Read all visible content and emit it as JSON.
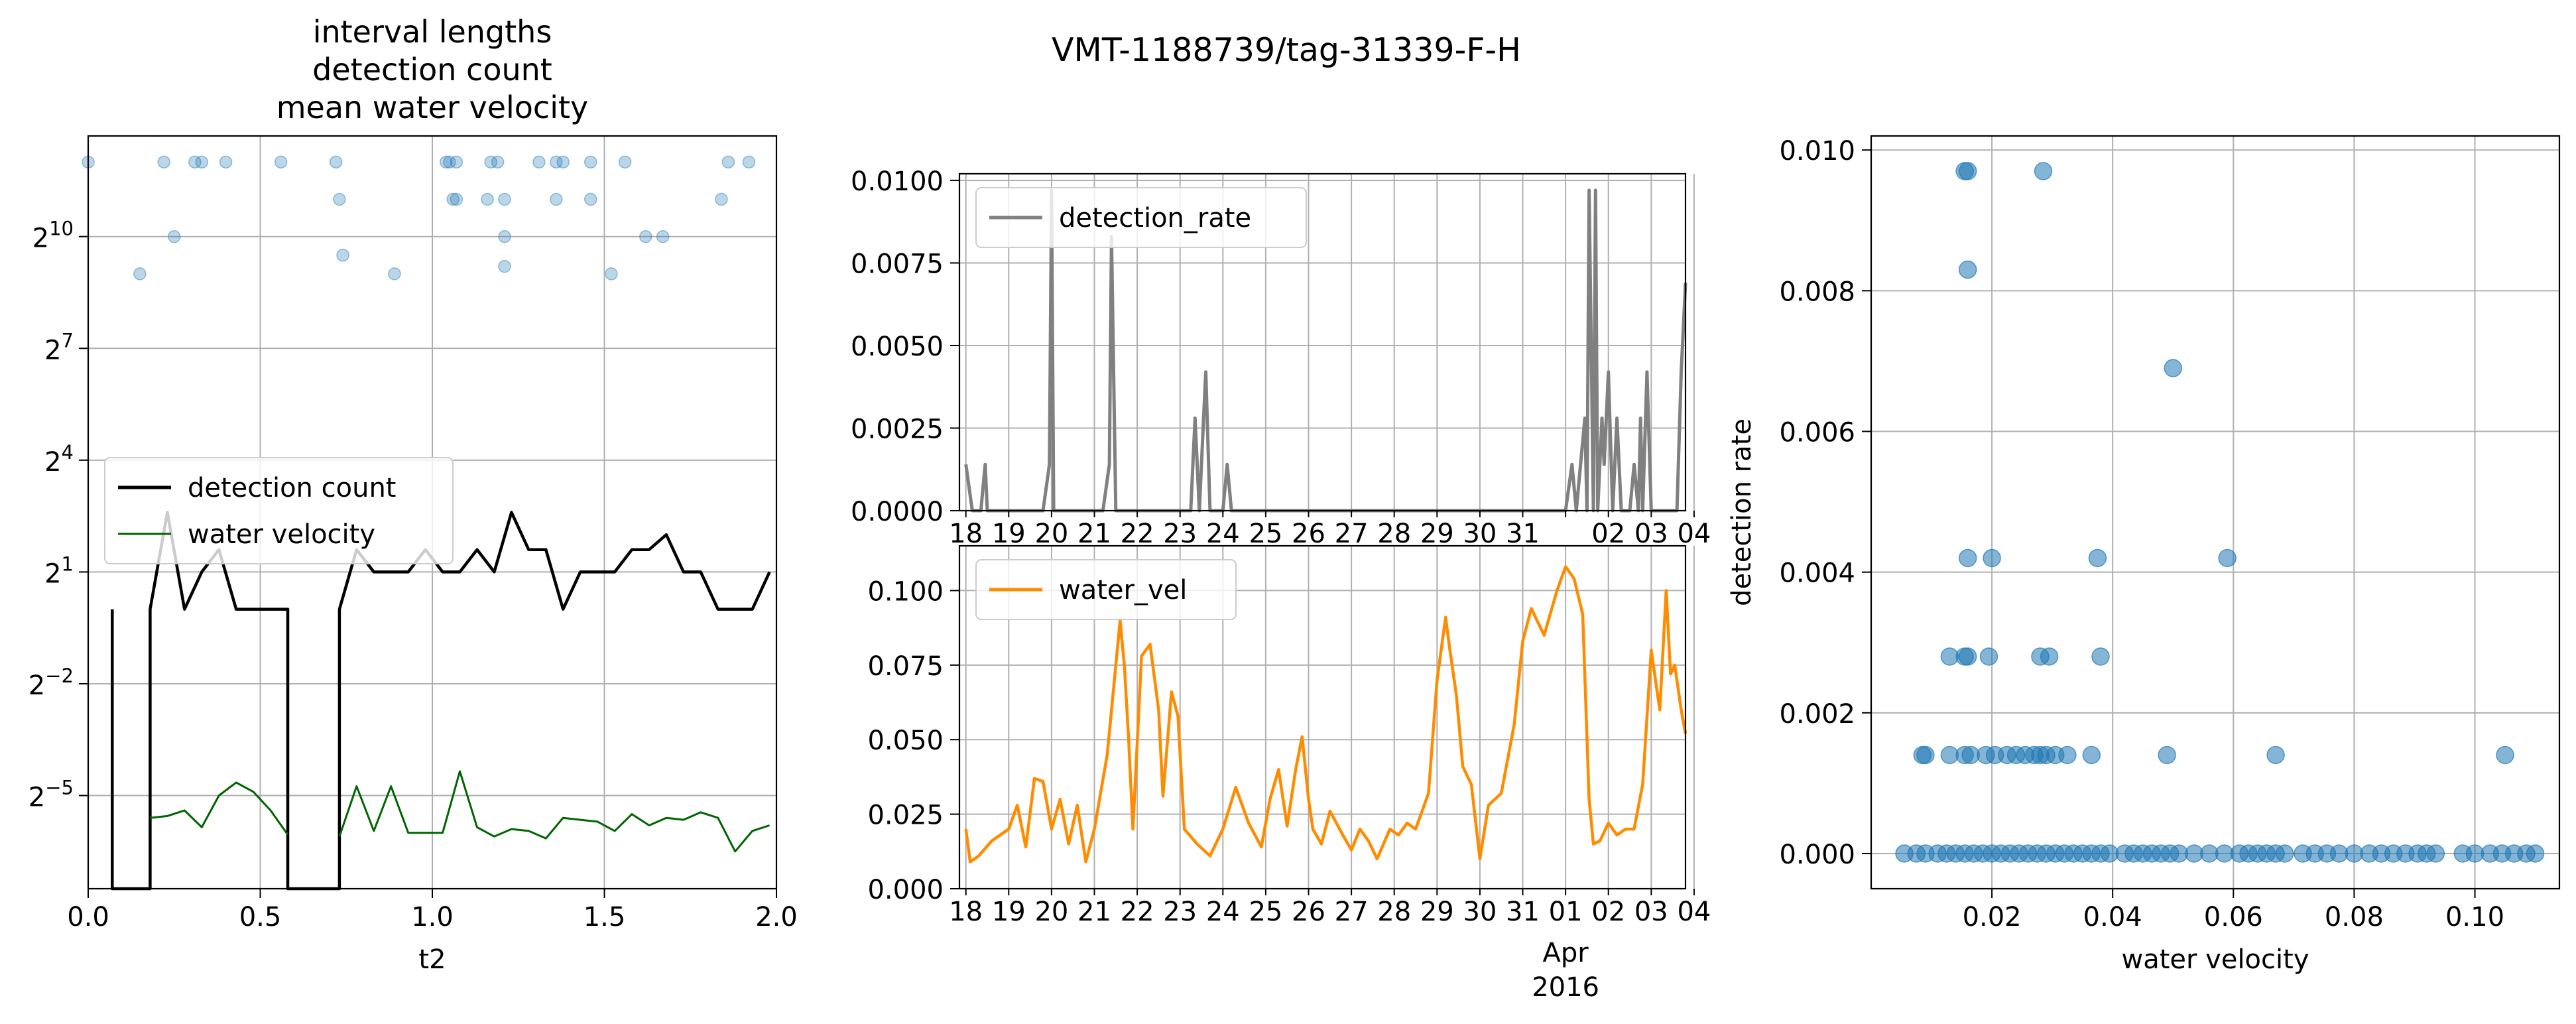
{
  "suptitle": "VMT-1188739/tag-31339-F-H",
  "colors": {
    "detection_count": "#000000",
    "water_velocity_line": "#006400",
    "interval_points": "#1f77b4",
    "detection_rate": "#808080",
    "water_vel": "#ff8c00",
    "scatter": "#1f77b4",
    "grid": "#b0b0b0"
  },
  "chart_data": [
    {
      "type": "line",
      "title": [
        "interval lengths",
        "detection count",
        "mean water velocity"
      ],
      "xlabel": "t2",
      "ylabel": "",
      "xlim": [
        0,
        2.0
      ],
      "xticks": [
        "0.0",
        "0.5",
        "1.0",
        "1.5",
        "2.0"
      ],
      "yscale": "log2",
      "ylim_log2": [
        -7.5,
        12.7
      ],
      "yticks": [
        {
          "base": "2",
          "exp": "10"
        },
        {
          "base": "2",
          "exp": "7"
        },
        {
          "base": "2",
          "exp": "4"
        },
        {
          "base": "2",
          "exp": "1"
        },
        {
          "base": "2",
          "exp": "−2"
        },
        {
          "base": "2",
          "exp": "−5"
        }
      ],
      "grid": true,
      "legend_position": "center-left",
      "legend": [
        "detection count",
        "water velocity"
      ],
      "scatter_points_log2": [
        [
          0.0,
          12.0
        ],
        [
          0.15,
          9.0
        ],
        [
          0.22,
          12.0
        ],
        [
          0.25,
          10.0
        ],
        [
          0.31,
          12.0
        ],
        [
          0.33,
          12.0
        ],
        [
          0.4,
          12.0
        ],
        [
          0.56,
          12.0
        ],
        [
          0.72,
          12.0
        ],
        [
          0.73,
          11.0
        ],
        [
          0.74,
          9.5
        ],
        [
          0.89,
          9.0
        ],
        [
          1.04,
          12.0
        ],
        [
          1.05,
          12.0
        ],
        [
          1.06,
          11.0
        ],
        [
          1.07,
          12.0
        ],
        [
          1.07,
          11.0
        ],
        [
          1.16,
          11.0
        ],
        [
          1.17,
          12.0
        ],
        [
          1.19,
          12.0
        ],
        [
          1.21,
          11.0
        ],
        [
          1.21,
          10.0
        ],
        [
          1.21,
          9.2
        ],
        [
          1.31,
          12.0
        ],
        [
          1.36,
          12.0
        ],
        [
          1.36,
          11.0
        ],
        [
          1.38,
          12.0
        ],
        [
          1.46,
          12.0
        ],
        [
          1.46,
          11.0
        ],
        [
          1.52,
          9.0
        ],
        [
          1.56,
          12.0
        ],
        [
          1.62,
          10.0
        ],
        [
          1.67,
          10.0
        ],
        [
          1.84,
          11.0
        ],
        [
          1.86,
          12.0
        ],
        [
          1.92,
          12.0
        ]
      ],
      "series": [
        {
          "name": "detection count",
          "x": [
            0.07,
            0.07,
            0.07,
            0.18,
            0.18,
            0.18,
            0.23,
            0.28,
            0.33,
            0.38,
            0.43,
            0.48,
            0.53,
            0.58,
            0.58,
            0.58,
            0.73,
            0.73,
            0.73,
            0.78,
            0.83,
            0.88,
            0.93,
            0.98,
            1.03,
            1.08,
            1.13,
            1.18,
            1.23,
            1.28,
            1.33,
            1.38,
            1.43,
            1.48,
            1.53,
            1.58,
            1.63,
            1.68,
            1.73,
            1.78,
            1.83,
            1.88,
            1.93,
            1.98
          ],
          "y_log2": [
            0.0,
            -7.5,
            -7.5,
            -7.5,
            -7.5,
            0.0,
            2.6,
            0.0,
            1.0,
            1.6,
            0.0,
            0.0,
            0.0,
            0.0,
            -7.5,
            -7.5,
            -7.5,
            0.0,
            0.0,
            1.6,
            1.0,
            1.0,
            1.0,
            1.6,
            1.0,
            1.0,
            1.6,
            1.0,
            2.6,
            1.6,
            1.6,
            0.0,
            1.0,
            1.0,
            1.0,
            1.6,
            1.6,
            2.0,
            1.0,
            1.0,
            0.0,
            0.0,
            0.0,
            1.0
          ]
        },
        {
          "name": "water velocity",
          "x": [
            0.18,
            0.23,
            0.28,
            0.33,
            0.38,
            0.43,
            0.48,
            0.53,
            0.58,
            null,
            0.73,
            0.78,
            0.83,
            0.88,
            0.93,
            0.98,
            1.03,
            1.08,
            1.13,
            1.18,
            1.23,
            1.28,
            1.33,
            1.38,
            1.43,
            1.48,
            1.53,
            1.58,
            1.63,
            1.68,
            1.73,
            1.78,
            1.83,
            1.88,
            1.93,
            1.98
          ],
          "y_log2": [
            -5.6,
            -5.55,
            -5.4,
            -5.85,
            -5.0,
            -4.65,
            -4.9,
            -5.4,
            -6.05,
            null,
            -6.1,
            -4.75,
            -5.95,
            -4.75,
            -6.0,
            -6.0,
            -6.0,
            -4.35,
            -5.85,
            -6.1,
            -5.9,
            -5.95,
            -6.15,
            -5.6,
            -5.65,
            -5.7,
            -5.95,
            -5.5,
            -5.8,
            -5.6,
            -5.65,
            -5.45,
            -5.6,
            -6.5,
            -5.95,
            -5.8
          ]
        }
      ]
    },
    {
      "type": "line",
      "title": "",
      "xlabel": "",
      "ylabel": "",
      "ylim": [
        0,
        0.0102
      ],
      "yticks": [
        "0.0000",
        "0.0025",
        "0.0050",
        "0.0075",
        "0.0100"
      ],
      "date_ticks": [
        "18",
        "19",
        "20",
        "21",
        "22",
        "23",
        "24",
        "25",
        "26",
        "27",
        "28",
        "29",
        "30",
        "31",
        "",
        "02",
        "03",
        "04"
      ],
      "grid": true,
      "legend_position": "top-left",
      "legend": [
        "detection_rate"
      ],
      "series": [
        {
          "name": "detection_rate",
          "x_day": [
            18.0,
            18.15,
            18.35,
            18.45,
            18.5,
            19.8,
            19.95,
            20.0,
            20.05,
            20.1,
            21.2,
            21.35,
            21.4,
            21.5,
            23.25,
            23.35,
            23.45,
            23.55,
            23.6,
            23.7,
            23.85,
            24.0,
            24.1,
            24.2,
            31.4,
            32.0,
            32.15,
            32.25,
            32.35,
            32.45,
            32.5,
            32.55,
            32.65,
            32.7,
            32.75,
            32.85,
            32.9,
            33.0,
            33.1,
            33.2,
            33.3,
            33.5,
            33.6,
            33.7,
            33.75,
            33.8,
            33.9,
            34.0,
            34.1,
            34.2,
            34.35,
            34.6,
            34.7,
            34.8
          ],
          "y": [
            0.0014,
            0,
            0,
            0.0014,
            0,
            0,
            0.0014,
            0.0097,
            0,
            0,
            0,
            0.0014,
            0.0083,
            0,
            0,
            0.0028,
            0,
            0.0028,
            0.0042,
            0,
            0,
            0,
            0.0014,
            0,
            0,
            0,
            0.0014,
            0,
            0.0014,
            0.0028,
            0,
            0.0097,
            0,
            0.0097,
            0,
            0.0028,
            0.0014,
            0.0042,
            0,
            0.0028,
            0,
            0,
            0.0014,
            0,
            0.0028,
            0,
            0.0042,
            0,
            0,
            0,
            0,
            0,
            0.0042,
            0.0069
          ]
        }
      ]
    },
    {
      "type": "line",
      "title": "",
      "xlabel": "",
      "ylabel": "",
      "ylim": [
        0,
        0.115
      ],
      "yticks": [
        "0.000",
        "0.025",
        "0.050",
        "0.075",
        "0.100"
      ],
      "date_ticks": [
        "18",
        "19",
        "20",
        "21",
        "22",
        "23",
        "24",
        "25",
        "26",
        "27",
        "28",
        "29",
        "30",
        "31",
        "01",
        "02",
        "03",
        "04"
      ],
      "month_label": "Apr",
      "year_label": "2016",
      "grid": true,
      "legend_position": "top-left",
      "legend": [
        "water_vel"
      ],
      "series": [
        {
          "name": "water_vel",
          "x_day": [
            18.0,
            18.1,
            18.3,
            18.6,
            19.0,
            19.2,
            19.4,
            19.6,
            19.8,
            20.0,
            20.2,
            20.4,
            20.6,
            20.8,
            21.0,
            21.3,
            21.6,
            21.7,
            21.8,
            21.9,
            22.1,
            22.3,
            22.5,
            22.6,
            22.8,
            22.95,
            23.1,
            23.4,
            23.7,
            24.0,
            24.3,
            24.6,
            24.9,
            25.1,
            25.3,
            25.5,
            25.7,
            25.85,
            26.0,
            26.1,
            26.3,
            26.5,
            26.8,
            27.0,
            27.2,
            27.4,
            27.6,
            27.9,
            28.1,
            28.3,
            28.5,
            28.8,
            29.0,
            29.2,
            29.3,
            29.45,
            29.6,
            29.8,
            30.0,
            30.2,
            30.5,
            30.8,
            31.0,
            31.2,
            31.5,
            31.8,
            32.0,
            32.2,
            32.4,
            32.55,
            32.65,
            32.8,
            33.0,
            33.2,
            33.4,
            33.6,
            33.8,
            34.0,
            34.2,
            34.35,
            34.45,
            34.55,
            34.7,
            34.8
          ],
          "y": [
            0.02,
            0.009,
            0.011,
            0.016,
            0.02,
            0.028,
            0.014,
            0.037,
            0.036,
            0.02,
            0.03,
            0.015,
            0.028,
            0.009,
            0.02,
            0.045,
            0.09,
            0.075,
            0.05,
            0.02,
            0.078,
            0.082,
            0.06,
            0.031,
            0.066,
            0.058,
            0.02,
            0.015,
            0.011,
            0.02,
            0.034,
            0.022,
            0.014,
            0.03,
            0.04,
            0.021,
            0.04,
            0.051,
            0.03,
            0.02,
            0.015,
            0.026,
            0.018,
            0.013,
            0.02,
            0.016,
            0.01,
            0.02,
            0.018,
            0.022,
            0.02,
            0.032,
            0.07,
            0.091,
            0.08,
            0.065,
            0.041,
            0.035,
            0.01,
            0.028,
            0.032,
            0.055,
            0.083,
            0.094,
            0.085,
            0.1,
            0.108,
            0.104,
            0.092,
            0.03,
            0.015,
            0.016,
            0.022,
            0.018,
            0.02,
            0.02,
            0.035,
            0.08,
            0.06,
            0.1,
            0.072,
            0.075,
            0.06,
            0.052
          ]
        }
      ]
    },
    {
      "type": "scatter",
      "title": "",
      "xlabel": "water velocity",
      "ylabel": "detection rate",
      "xlim": [
        0.0,
        0.114
      ],
      "ylim": [
        -0.0005,
        0.0102
      ],
      "xticks": [
        "0.02",
        "0.04",
        "0.06",
        "0.08",
        "0.10"
      ],
      "yticks": [
        "0.000",
        "0.002",
        "0.004",
        "0.006",
        "0.008",
        "0.010"
      ],
      "grid": true,
      "points": [
        [
          0.0155,
          0.0097
        ],
        [
          0.016,
          0.0097
        ],
        [
          0.0285,
          0.0097
        ],
        [
          0.016,
          0.0083
        ],
        [
          0.05,
          0.0069
        ],
        [
          0.016,
          0.0042
        ],
        [
          0.02,
          0.0042
        ],
        [
          0.0375,
          0.0042
        ],
        [
          0.059,
          0.0042
        ],
        [
          0.013,
          0.0028
        ],
        [
          0.0155,
          0.0028
        ],
        [
          0.016,
          0.0028
        ],
        [
          0.0195,
          0.0028
        ],
        [
          0.028,
          0.0028
        ],
        [
          0.0295,
          0.0028
        ],
        [
          0.038,
          0.0028
        ],
        [
          0.0085,
          0.0014
        ],
        [
          0.009,
          0.0014
        ],
        [
          0.013,
          0.0014
        ],
        [
          0.0155,
          0.0014
        ],
        [
          0.0165,
          0.0014
        ],
        [
          0.019,
          0.0014
        ],
        [
          0.0205,
          0.0014
        ],
        [
          0.0225,
          0.0014
        ],
        [
          0.024,
          0.0014
        ],
        [
          0.0255,
          0.0014
        ],
        [
          0.027,
          0.0014
        ],
        [
          0.028,
          0.0014
        ],
        [
          0.029,
          0.0014
        ],
        [
          0.0305,
          0.0014
        ],
        [
          0.0325,
          0.0014
        ],
        [
          0.0365,
          0.0014
        ],
        [
          0.049,
          0.0014
        ],
        [
          0.067,
          0.0014
        ],
        [
          0.105,
          0.0014
        ],
        [
          0.0055,
          0
        ],
        [
          0.0075,
          0
        ],
        [
          0.009,
          0
        ],
        [
          0.011,
          0
        ],
        [
          0.0125,
          0
        ],
        [
          0.014,
          0
        ],
        [
          0.0155,
          0
        ],
        [
          0.017,
          0
        ],
        [
          0.0185,
          0
        ],
        [
          0.02,
          0
        ],
        [
          0.0215,
          0
        ],
        [
          0.023,
          0
        ],
        [
          0.0245,
          0
        ],
        [
          0.026,
          0
        ],
        [
          0.0275,
          0
        ],
        [
          0.029,
          0
        ],
        [
          0.0305,
          0
        ],
        [
          0.032,
          0
        ],
        [
          0.0335,
          0
        ],
        [
          0.035,
          0
        ],
        [
          0.0365,
          0
        ],
        [
          0.038,
          0
        ],
        [
          0.0395,
          0
        ],
        [
          0.042,
          0
        ],
        [
          0.0435,
          0
        ],
        [
          0.045,
          0
        ],
        [
          0.0465,
          0
        ],
        [
          0.048,
          0
        ],
        [
          0.0495,
          0
        ],
        [
          0.051,
          0
        ],
        [
          0.0535,
          0
        ],
        [
          0.056,
          0
        ],
        [
          0.0585,
          0
        ],
        [
          0.061,
          0
        ],
        [
          0.0625,
          0
        ],
        [
          0.064,
          0
        ],
        [
          0.0655,
          0
        ],
        [
          0.067,
          0
        ],
        [
          0.0685,
          0
        ],
        [
          0.0715,
          0
        ],
        [
          0.0735,
          0
        ],
        [
          0.0755,
          0
        ],
        [
          0.0775,
          0
        ],
        [
          0.08,
          0
        ],
        [
          0.0825,
          0
        ],
        [
          0.0845,
          0
        ],
        [
          0.0865,
          0
        ],
        [
          0.0885,
          0
        ],
        [
          0.0905,
          0
        ],
        [
          0.092,
          0
        ],
        [
          0.0935,
          0
        ],
        [
          0.098,
          0
        ],
        [
          0.1,
          0
        ],
        [
          0.1025,
          0
        ],
        [
          0.1045,
          0
        ],
        [
          0.1065,
          0
        ],
        [
          0.1085,
          0
        ],
        [
          0.11,
          0
        ]
      ]
    }
  ]
}
